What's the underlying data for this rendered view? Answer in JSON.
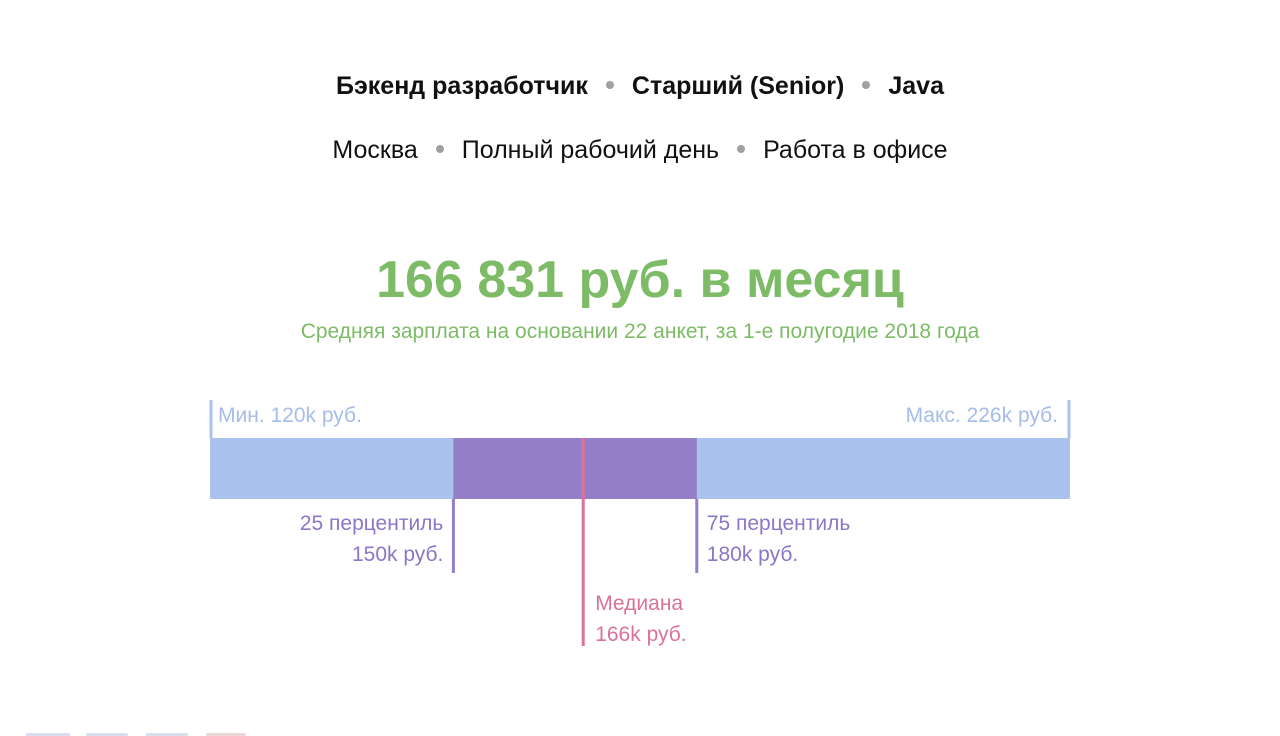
{
  "filters": {
    "row1": [
      "Бэкенд разработчик",
      "Старший (Senior)",
      "Java"
    ],
    "row2": [
      "Москва",
      "Полный рабочий день",
      "Работа в офисе"
    ]
  },
  "headline": "166 831 руб. в месяц",
  "subheadline": "Средняя зарплата на основании 22 анкет, за 1-е полугодие 2018 года",
  "colors": {
    "headline": "#7dbb66",
    "range": "#aac2ee",
    "iqr": "#947ec8",
    "median": "#db7299",
    "min_max_text": "#a5bde8",
    "percentile_text": "#8c76c6"
  },
  "chart_data": {
    "type": "box",
    "unit": "k руб.",
    "min": 120,
    "p25": 150,
    "median": 166,
    "p75": 180,
    "max": 226,
    "labels": {
      "min": "Мин. 120k руб.",
      "max": "Макс. 226k руб.",
      "p25_name": "25 перцентиль",
      "p25_value": "150k руб.",
      "p75_name": "75 перцентиль",
      "p75_value": "180k руб.",
      "median_name": "Медиана",
      "median_value": "166k руб."
    }
  }
}
